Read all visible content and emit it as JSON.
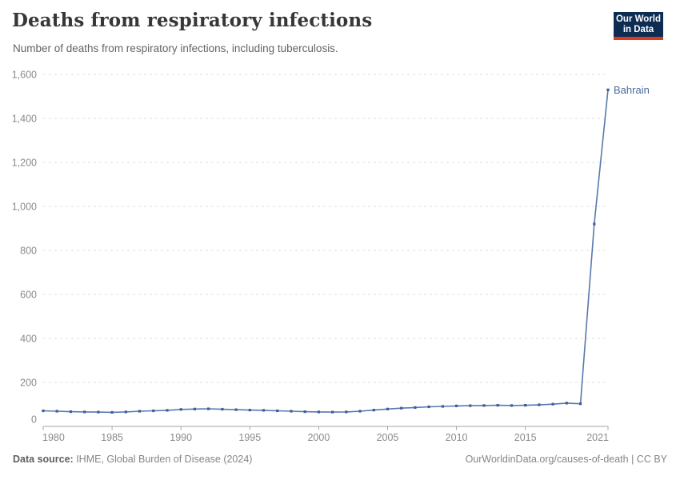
{
  "header": {
    "title": "Deaths from respiratory infections",
    "subtitle": "Number of deaths from respiratory infections, including tuberculosis."
  },
  "logo": {
    "line1": "Our World",
    "line2": "in Data",
    "bg_color": "#0c2c52",
    "accent_color": "#dc3a1f"
  },
  "chart_data": {
    "type": "line",
    "title": "Deaths from respiratory infections",
    "subtitle": "Number of deaths from respiratory infections, including tuberculosis.",
    "xlabel": "",
    "ylabel": "",
    "xlim": [
      1980,
      2021
    ],
    "ylim": [
      0,
      1600
    ],
    "grid": "dashed-horizontal",
    "legend_position": "end-of-line-label",
    "x": [
      1980,
      1981,
      1982,
      1983,
      1984,
      1985,
      1986,
      1987,
      1988,
      1989,
      1990,
      1991,
      1992,
      1993,
      1994,
      1995,
      1996,
      1997,
      1998,
      1999,
      2000,
      2001,
      2002,
      2003,
      2004,
      2005,
      2006,
      2007,
      2008,
      2009,
      2010,
      2011,
      2012,
      2013,
      2014,
      2015,
      2016,
      2017,
      2018,
      2019,
      2020,
      2021
    ],
    "series": [
      {
        "name": "Bahrain",
        "values": [
          71,
          69,
          67,
          66,
          65,
          64,
          66,
          69,
          71,
          73,
          77,
          79,
          80,
          78,
          76,
          74,
          73,
          71,
          69,
          67,
          66,
          65,
          66,
          69,
          74,
          79,
          83,
          86,
          89,
          91,
          93,
          94,
          95,
          96,
          95,
          96,
          98,
          101,
          106,
          103,
          920,
          1530
        ]
      }
    ],
    "y_ticks": [
      0,
      200,
      400,
      600,
      800,
      1000,
      1200,
      1400,
      1600
    ],
    "y_tick_labels": [
      "0",
      "200",
      "400",
      "600",
      "800",
      "1,000",
      "1,200",
      "1,400",
      "1,600"
    ],
    "x_ticks": [
      1980,
      1985,
      1990,
      1995,
      2000,
      2005,
      2010,
      2015,
      2021
    ],
    "x_tick_labels": [
      "1980",
      "1985",
      "1990",
      "1995",
      "2000",
      "2005",
      "2010",
      "2015",
      "2021"
    ],
    "line_color": "#5878ae",
    "marker_color": "#3d5c98",
    "label_color": "#4c6a9c",
    "grid_color": "#dedede",
    "axis_color": "#a5a5a5",
    "tick_text_color": "#8a8a8a"
  },
  "footer": {
    "source_label": "Data source:",
    "source_text": " IHME, Global Burden of Disease (2024)",
    "right_text": "OurWorldinData.org/causes-of-death | CC BY"
  }
}
